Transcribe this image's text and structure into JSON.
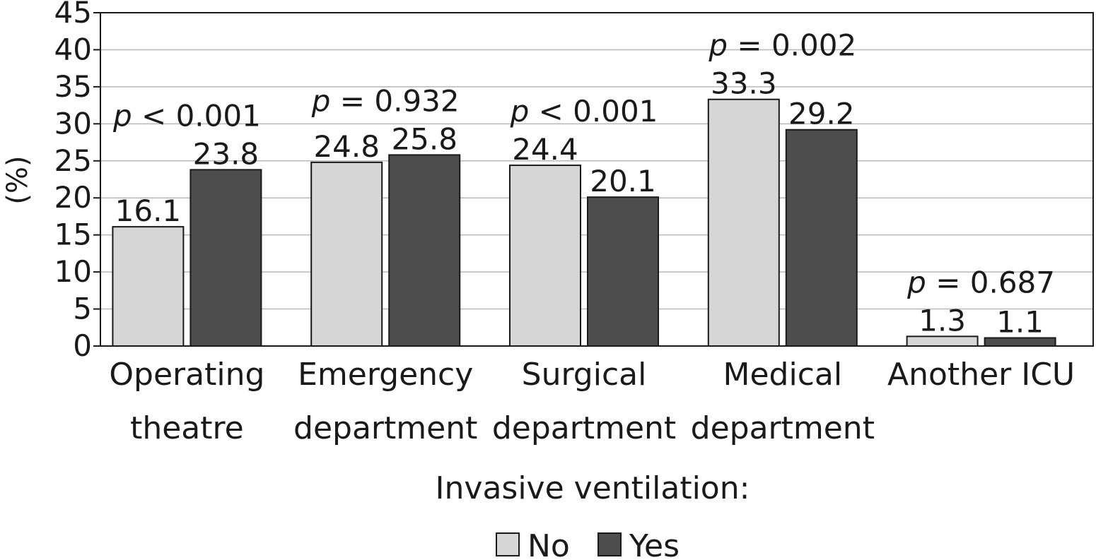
{
  "chart_data": {
    "type": "bar",
    "ylabel": "(%)",
    "ylim": [
      0,
      45
    ],
    "yticks": [
      0,
      5,
      10,
      15,
      20,
      25,
      30,
      35,
      40,
      45
    ],
    "grid": true,
    "categories": [
      [
        "Operating",
        "theatre"
      ],
      [
        "Emergency",
        "department"
      ],
      [
        "Surgical",
        "department"
      ],
      [
        "Medical",
        "department"
      ],
      [
        "Another ICU"
      ]
    ],
    "series": [
      {
        "name": "No",
        "color": "#d6d6d6",
        "values": [
          16.1,
          24.8,
          24.4,
          33.3,
          1.3
        ],
        "labels": [
          "16.1",
          "24.8",
          "24.4",
          "33.3",
          "1.3"
        ]
      },
      {
        "name": "Yes",
        "color": "#4d4d4d",
        "values": [
          23.8,
          25.8,
          20.1,
          29.2,
          1.1
        ],
        "labels": [
          "23.8",
          "25.8",
          "20.1",
          "29.2",
          "1.1"
        ]
      }
    ],
    "annotations": [
      {
        "op": "<",
        "value": "0.001"
      },
      {
        "op": "=",
        "value": "0.932"
      },
      {
        "op": "<",
        "value": "0.001"
      },
      {
        "op": "=",
        "value": "0.002"
      },
      {
        "op": "=",
        "value": "0.687"
      }
    ],
    "p_symbol": "p",
    "legend": {
      "title": "Invasive ventilation:",
      "position": "bottom-center"
    }
  }
}
